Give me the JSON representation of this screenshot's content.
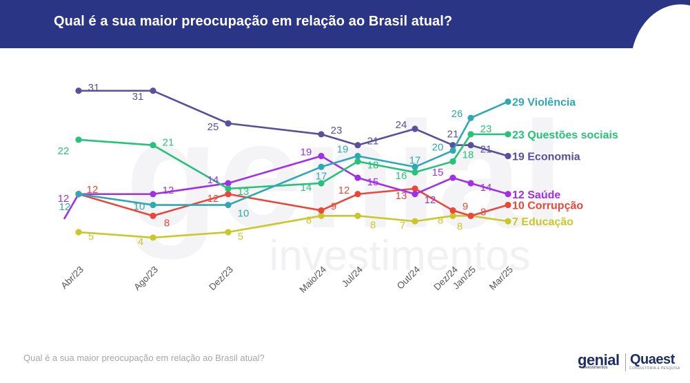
{
  "header": {
    "title": "Qual é a sua maior preocupação em relação ao Brasil atual?"
  },
  "footer": {
    "caption": "Qual é a sua maior preocupação em relação ao Brasil atual?"
  },
  "logos": {
    "genial": "genial",
    "genial_sub": "investimentos",
    "quaest": "Quaest",
    "quaest_sub": "CONSULTORIA & PESQUISA"
  },
  "watermark": {
    "big": "genial",
    "small": "investimentos"
  },
  "colors": {
    "header_bg": "#2a3585",
    "Violência": "#2fa8b4",
    "Questões sociais": "#27c27a",
    "Economia": "#57509a",
    "Saúde": "#a12fe6",
    "Corrupção": "#e9473a",
    "Educação": "#c9c729"
  },
  "chart_data": {
    "type": "line",
    "categories": [
      "Abr/23",
      "Ago/23",
      "Dez/23",
      "Maio/24",
      "Jul/24",
      "Out/24",
      "Dez/24",
      "Jan/25",
      "Mar/25"
    ],
    "series": [
      {
        "name": "Violência",
        "end_label": "29 Violência",
        "values": [
          12,
          10,
          10,
          17,
          19,
          17,
          20,
          26,
          29
        ]
      },
      {
        "name": "Questões sociais",
        "end_label": "23 Questões sociais",
        "values": [
          22,
          21,
          13,
          14,
          18,
          16,
          18,
          23,
          23
        ]
      },
      {
        "name": "Economia",
        "end_label": "19 Economia",
        "values": [
          31,
          31,
          25,
          23,
          21,
          24,
          21,
          21,
          19
        ]
      },
      {
        "name": "Saúde",
        "end_label": "12 Saúde",
        "values": [
          12,
          12,
          14,
          19,
          15,
          12,
          15,
          14,
          12
        ]
      },
      {
        "name": "Corrupção",
        "end_label": "10 Corrupção",
        "values": [
          12,
          8,
          12,
          9,
          12,
          13,
          9,
          8,
          10
        ]
      },
      {
        "name": "Educação",
        "end_label": "7 Educação",
        "values": [
          5,
          4,
          5,
          8,
          8,
          7,
          8,
          8,
          7
        ]
      }
    ]
  }
}
